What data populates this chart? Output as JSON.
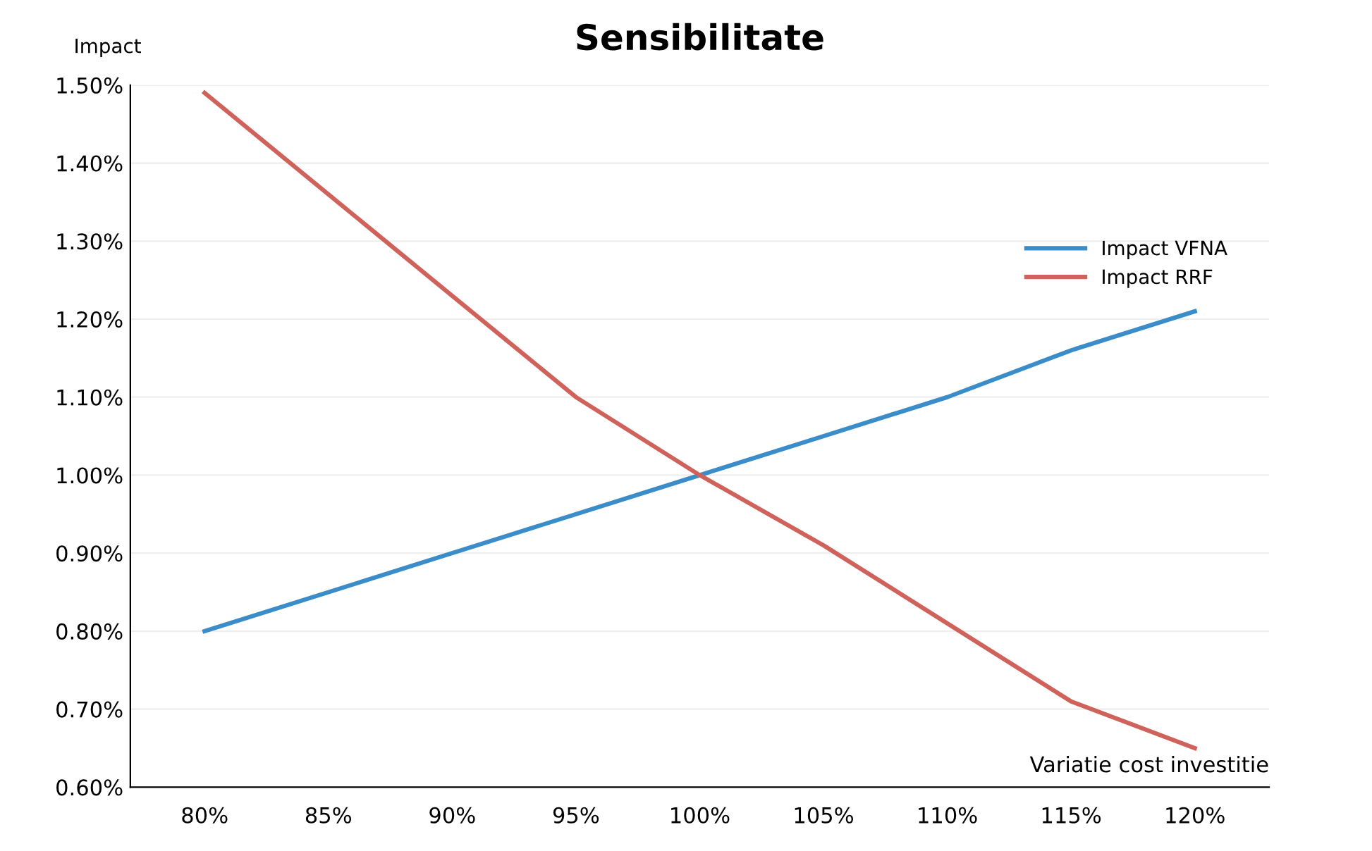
{
  "chart_data": {
    "type": "line",
    "title": "Sensibilitate",
    "xlabel": "Variatie cost investitie",
    "ylabel": "Impact",
    "categories": [
      "80%",
      "85%",
      "90%",
      "95%",
      "100%",
      "105%",
      "110%",
      "115%",
      "120%"
    ],
    "series": [
      {
        "name": "Impact VFNA",
        "color": "#3a8dc8",
        "values": [
          0.8,
          0.85,
          0.9,
          0.95,
          1.0,
          1.05,
          1.1,
          1.16,
          1.21
        ]
      },
      {
        "name": "Impact RRF",
        "color": "#d0625c",
        "values": [
          1.49,
          1.36,
          1.23,
          1.1,
          1.0,
          0.91,
          0.81,
          0.71,
          0.65
        ]
      }
    ],
    "ylim": [
      0.6,
      1.5
    ],
    "yticks": [
      {
        "value": 0.6,
        "label": "0.60%"
      },
      {
        "value": 0.7,
        "label": "0.70%"
      },
      {
        "value": 0.8,
        "label": "0.80%"
      },
      {
        "value": 0.9,
        "label": "0.90%"
      },
      {
        "value": 1.0,
        "label": "1.00%"
      },
      {
        "value": 1.1,
        "label": "1.10%"
      },
      {
        "value": 1.2,
        "label": "1.20%"
      },
      {
        "value": 1.3,
        "label": "1.30%"
      },
      {
        "value": 1.4,
        "label": "1.40%"
      },
      {
        "value": 1.5,
        "label": "1.50%"
      }
    ],
    "grid": "y",
    "legend": "top right",
    "marker": "none",
    "line_style": "solid"
  }
}
